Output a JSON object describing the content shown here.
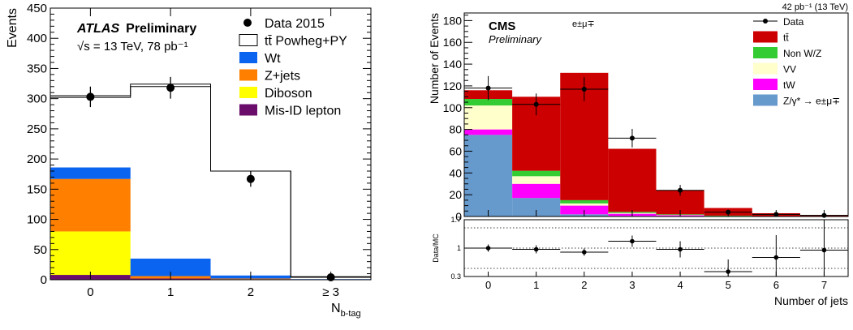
{
  "chart_data": [
    {
      "type": "bar",
      "stacked": true,
      "experiment": "ATLAS",
      "label": "Preliminary",
      "energy_line": "√s = 13 TeV, 78 pb⁻¹",
      "ylabel": "Events",
      "xlabel": "N",
      "xlabel_sub": "b-tag",
      "ylim": [
        0,
        450
      ],
      "yticks": [
        "0",
        "50",
        "100",
        "150",
        "200",
        "250",
        "300",
        "350",
        "400",
        "450"
      ],
      "categories": [
        "0",
        "1",
        "2",
        "≥ 3"
      ],
      "series": [
        {
          "name": "Mis-ID lepton",
          "color": "#6b0d6b",
          "values": [
            8,
            2,
            1,
            0
          ]
        },
        {
          "name": "Diboson",
          "color": "#ffff00",
          "values": [
            72,
            0,
            0,
            0
          ]
        },
        {
          "name": "Z+jets",
          "color": "#ff7f00",
          "values": [
            87,
            4,
            1,
            0
          ]
        },
        {
          "name": "Wt",
          "color": "#0a64f0",
          "values": [
            19,
            29,
            5,
            1
          ]
        }
      ],
      "ttbar": {
        "name": "tt̄ Powheg+PY",
        "top": [
          302,
          320,
          180,
          4
        ]
      },
      "ttbar_upper": [
        305,
        324,
        180,
        5
      ],
      "data": {
        "name": "Data 2015",
        "values": [
          303,
          318,
          167,
          4
        ],
        "errors": [
          17,
          18,
          13,
          2
        ]
      }
    },
    {
      "type": "bar",
      "stacked": true,
      "experiment": "CMS",
      "label": "Preliminary",
      "channel": "e±μ∓",
      "lumi_label": "42 pb⁻¹ (13 TeV)",
      "ylabel": "Number of Events",
      "xlabel": "Number of jets",
      "ylim": [
        0,
        187
      ],
      "yticks": [
        "0",
        "20",
        "40",
        "60",
        "80",
        "100",
        "120",
        "140",
        "160",
        "180"
      ],
      "categories": [
        "0",
        "1",
        "2",
        "3",
        "4",
        "5",
        "6",
        "7"
      ],
      "series": [
        {
          "name": "Z/γ* → e±μ∓",
          "color": "#6699cc",
          "values": [
            75,
            17,
            2,
            0.5,
            0.2,
            0,
            0,
            0
          ]
        },
        {
          "name": "tW",
          "color": "#ff00ff",
          "values": [
            5,
            13,
            8,
            2,
            1,
            0.5,
            0.2,
            0
          ]
        },
        {
          "name": "VV",
          "color": "#ffffcc",
          "values": [
            22,
            7,
            2,
            0.7,
            0.3,
            0.1,
            0,
            0
          ]
        },
        {
          "name": "Non W/Z",
          "color": "#33cc33",
          "values": [
            6,
            5,
            3,
            1,
            0.5,
            0.2,
            0,
            0
          ]
        },
        {
          "name": "tt̄",
          "color": "#cc0000",
          "values": [
            8,
            68,
            117,
            58,
            22,
            7,
            2.8,
            1.3
          ]
        }
      ],
      "data": {
        "name": "Data",
        "values": [
          118,
          103,
          117,
          72,
          24,
          4,
          2,
          1
        ],
        "errors": [
          11,
          10,
          11,
          8.5,
          5,
          2,
          1.4,
          1
        ]
      },
      "ratio": {
        "ylabel": "Data/MC",
        "ylim": [
          0.3,
          1.7
        ],
        "yticks": [
          "0.3",
          "1",
          "1.7"
        ],
        "values": [
          1.0,
          0.97,
          0.9,
          1.17,
          0.97,
          0.42,
          0.77,
          0.95
        ],
        "errors": [
          0.09,
          0.1,
          0.09,
          0.14,
          0.2,
          0.3,
          0.55,
          0.75
        ],
        "gridlines": [
          0.5,
          1.0,
          1.5
        ]
      }
    }
  ]
}
